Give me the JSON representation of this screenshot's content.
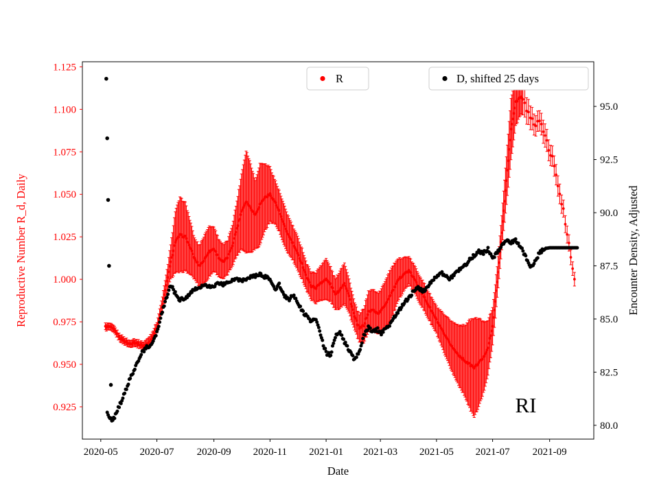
{
  "figure": {
    "background": "#ffffff"
  },
  "chart_data": {
    "type": "scatter",
    "title": "",
    "xlabel": "Date",
    "ylabel_left": "Reproductive Number R_d, Daily",
    "ylabel_right": "Encounter Density, Adjusted",
    "annotation": "RI",
    "colors": {
      "r": "#ff0000",
      "d": "#000000",
      "legend_border": "#cccccc"
    },
    "legend": [
      {
        "label": "R",
        "color": "#ff0000"
      },
      {
        "label": "D, shifted 25 days",
        "color": "#000000"
      }
    ],
    "xlim": [
      "2020-04-11",
      "2021-10-19"
    ],
    "ylim_left": [
      0.906,
      1.128
    ],
    "ylim_right": [
      79.35,
      97.1
    ],
    "x_ticks": [
      [
        "2020-05-01",
        "2020-05"
      ],
      [
        "2020-07-01",
        "2020-07"
      ],
      [
        "2020-09-01",
        "2020-09"
      ],
      [
        "2020-11-01",
        "2020-11"
      ],
      [
        "2021-01-01",
        "2021-01"
      ],
      [
        "2021-03-01",
        "2021-03"
      ],
      [
        "2021-05-01",
        "2021-05"
      ],
      [
        "2021-07-01",
        "2021-07"
      ],
      [
        "2021-09-01",
        "2021-09"
      ]
    ],
    "y_ticks_left": [
      [
        0.925,
        "0.925"
      ],
      [
        0.95,
        "0.950"
      ],
      [
        0.975,
        "0.975"
      ],
      [
        1.0,
        "1.000"
      ],
      [
        1.025,
        "1.025"
      ],
      [
        1.05,
        "1.050"
      ],
      [
        1.075,
        "1.075"
      ],
      [
        1.1,
        "1.100"
      ],
      [
        1.125,
        "1.125"
      ]
    ],
    "y_ticks_right": [
      [
        80.0,
        "80.0"
      ],
      [
        82.5,
        "82.5"
      ],
      [
        85.0,
        "85.0"
      ],
      [
        87.5,
        "87.5"
      ],
      [
        90.0,
        "90.0"
      ],
      [
        92.5,
        "92.5"
      ],
      [
        95.0,
        "95.0"
      ]
    ],
    "series": [
      {
        "name": "R",
        "axis": "left",
        "marker": "dot-with-errorbar",
        "color": "#ff0000",
        "note": "daily values; control points every ~5 days as [date, R, err]",
        "points": [
          [
            "2020-05-06",
            0.972,
            0.002
          ],
          [
            "2020-05-11",
            0.972,
            0.002
          ],
          [
            "2020-05-16",
            0.97,
            0.002
          ],
          [
            "2020-05-21",
            0.966,
            0.002
          ],
          [
            "2020-05-26",
            0.964,
            0.002
          ],
          [
            "2020-06-01",
            0.962,
            0.002
          ],
          [
            "2020-06-06",
            0.963,
            0.002
          ],
          [
            "2020-06-11",
            0.962,
            0.002
          ],
          [
            "2020-06-16",
            0.961,
            0.002
          ],
          [
            "2020-06-21",
            0.962,
            0.003
          ],
          [
            "2020-06-26",
            0.966,
            0.003
          ],
          [
            "2020-07-01",
            0.972,
            0.003
          ],
          [
            "2020-07-06",
            0.983,
            0.004
          ],
          [
            "2020-07-11",
            0.996,
            0.006
          ],
          [
            "2020-07-16",
            1.01,
            0.01
          ],
          [
            "2020-07-21",
            1.022,
            0.018
          ],
          [
            "2020-07-26",
            1.026,
            0.022
          ],
          [
            "2020-08-01",
            1.025,
            0.02
          ],
          [
            "2020-08-06",
            1.019,
            0.016
          ],
          [
            "2020-08-11",
            1.012,
            0.012
          ],
          [
            "2020-08-16",
            1.008,
            0.012
          ],
          [
            "2020-08-21",
            1.011,
            0.014
          ],
          [
            "2020-08-26",
            1.016,
            0.015
          ],
          [
            "2020-09-01",
            1.018,
            0.013
          ],
          [
            "2020-09-06",
            1.013,
            0.011
          ],
          [
            "2020-09-11",
            1.01,
            0.01
          ],
          [
            "2020-09-16",
            1.013,
            0.01
          ],
          [
            "2020-09-21",
            1.02,
            0.012
          ],
          [
            "2020-09-26",
            1.03,
            0.016
          ],
          [
            "2020-10-01",
            1.04,
            0.022
          ],
          [
            "2020-10-06",
            1.046,
            0.03
          ],
          [
            "2020-10-11",
            1.042,
            0.026
          ],
          [
            "2020-10-16",
            1.038,
            0.02
          ],
          [
            "2020-10-21",
            1.044,
            0.024
          ],
          [
            "2020-10-26",
            1.048,
            0.02
          ],
          [
            "2020-11-01",
            1.05,
            0.016
          ],
          [
            "2020-11-06",
            1.046,
            0.013
          ],
          [
            "2020-11-11",
            1.04,
            0.012
          ],
          [
            "2020-11-16",
            1.032,
            0.012
          ],
          [
            "2020-11-21",
            1.026,
            0.011
          ],
          [
            "2020-11-26",
            1.021,
            0.01
          ],
          [
            "2020-12-01",
            1.015,
            0.01
          ],
          [
            "2020-12-06",
            1.009,
            0.009
          ],
          [
            "2020-12-11",
            1.001,
            0.008
          ],
          [
            "2020-12-16",
            0.996,
            0.008
          ],
          [
            "2020-12-21",
            0.995,
            0.009
          ],
          [
            "2020-12-26",
            0.998,
            0.01
          ],
          [
            "2021-01-01",
            1.0,
            0.012
          ],
          [
            "2021-01-06",
            0.997,
            0.01
          ],
          [
            "2021-01-11",
            0.991,
            0.009
          ],
          [
            "2021-01-16",
            0.994,
            0.011
          ],
          [
            "2021-01-21",
            0.998,
            0.012
          ],
          [
            "2021-01-26",
            0.99,
            0.01
          ],
          [
            "2021-02-01",
            0.978,
            0.008
          ],
          [
            "2021-02-06",
            0.971,
            0.008
          ],
          [
            "2021-02-11",
            0.973,
            0.01
          ],
          [
            "2021-02-16",
            0.981,
            0.012
          ],
          [
            "2021-02-21",
            0.982,
            0.012
          ],
          [
            "2021-02-26",
            0.98,
            0.012
          ],
          [
            "2021-03-01",
            0.981,
            0.012
          ],
          [
            "2021-03-06",
            0.985,
            0.014
          ],
          [
            "2021-03-11",
            0.99,
            0.015
          ],
          [
            "2021-03-16",
            0.995,
            0.014
          ],
          [
            "2021-03-21",
            1.0,
            0.012
          ],
          [
            "2021-03-26",
            1.003,
            0.01
          ],
          [
            "2021-04-01",
            1.005,
            0.008
          ],
          [
            "2021-04-06",
            1.001,
            0.008
          ],
          [
            "2021-04-11",
            0.996,
            0.008
          ],
          [
            "2021-04-16",
            0.991,
            0.008
          ],
          [
            "2021-04-21",
            0.986,
            0.008
          ],
          [
            "2021-04-26",
            0.981,
            0.008
          ],
          [
            "2021-05-01",
            0.976,
            0.008
          ],
          [
            "2021-05-06",
            0.971,
            0.01
          ],
          [
            "2021-05-11",
            0.966,
            0.012
          ],
          [
            "2021-05-16",
            0.962,
            0.014
          ],
          [
            "2021-05-21",
            0.958,
            0.016
          ],
          [
            "2021-05-26",
            0.955,
            0.018
          ],
          [
            "2021-06-01",
            0.952,
            0.021
          ],
          [
            "2021-06-06",
            0.95,
            0.026
          ],
          [
            "2021-06-11",
            0.948,
            0.029
          ],
          [
            "2021-06-16",
            0.951,
            0.026
          ],
          [
            "2021-06-21",
            0.954,
            0.021
          ],
          [
            "2021-06-26",
            0.96,
            0.016
          ],
          [
            "2021-07-01",
            0.972,
            0.011
          ],
          [
            "2021-07-06",
            0.998,
            0.009
          ],
          [
            "2021-07-11",
            1.028,
            0.01
          ],
          [
            "2021-07-16",
            1.058,
            0.014
          ],
          [
            "2021-07-21",
            1.088,
            0.018
          ],
          [
            "2021-07-26",
            1.104,
            0.014
          ],
          [
            "2021-08-01",
            1.108,
            0.01
          ],
          [
            "2021-08-06",
            1.101,
            0.008
          ],
          [
            "2021-08-11",
            1.096,
            0.007
          ],
          [
            "2021-08-16",
            1.091,
            0.006
          ],
          [
            "2021-08-21",
            1.093,
            0.006
          ],
          [
            "2021-08-26",
            1.085,
            0.007
          ],
          [
            "2021-09-01",
            1.076,
            0.006
          ],
          [
            "2021-09-06",
            1.068,
            0.006
          ],
          [
            "2021-09-11",
            1.052,
            0.006
          ],
          [
            "2021-09-16",
            1.04,
            0.005
          ],
          [
            "2021-09-21",
            1.024,
            0.005
          ],
          [
            "2021-09-26",
            1.008,
            0.004
          ],
          [
            "2021-09-29",
            0.998,
            0.004
          ]
        ]
      },
      {
        "name": "D, shifted 25 days",
        "axis": "right",
        "marker": "dot",
        "color": "#000000",
        "note": "daily values; control points every ~5 days as [date, D]",
        "outliers": [
          [
            "2020-05-07",
            96.3
          ],
          [
            "2020-05-08",
            93.5
          ],
          [
            "2020-05-09",
            90.6
          ],
          [
            "2020-05-10",
            87.5
          ],
          [
            "2020-05-12",
            81.9
          ]
        ],
        "points": [
          [
            "2020-05-08",
            80.6
          ],
          [
            "2020-05-11",
            80.3
          ],
          [
            "2020-05-14",
            80.2
          ],
          [
            "2020-05-17",
            80.5
          ],
          [
            "2020-05-21",
            80.9
          ],
          [
            "2020-05-26",
            81.4
          ],
          [
            "2020-06-01",
            82.1
          ],
          [
            "2020-06-06",
            82.6
          ],
          [
            "2020-06-11",
            83.1
          ],
          [
            "2020-06-16",
            83.5
          ],
          [
            "2020-06-21",
            83.7
          ],
          [
            "2020-06-26",
            83.8
          ],
          [
            "2020-07-01",
            84.4
          ],
          [
            "2020-07-06",
            85.2
          ],
          [
            "2020-07-11",
            85.9
          ],
          [
            "2020-07-16",
            86.6
          ],
          [
            "2020-07-21",
            86.2
          ],
          [
            "2020-07-26",
            85.9
          ],
          [
            "2020-08-01",
            86.0
          ],
          [
            "2020-08-06",
            86.2
          ],
          [
            "2020-08-11",
            86.4
          ],
          [
            "2020-08-16",
            86.5
          ],
          [
            "2020-08-21",
            86.6
          ],
          [
            "2020-08-26",
            86.5
          ],
          [
            "2020-09-01",
            86.5
          ],
          [
            "2020-09-06",
            86.7
          ],
          [
            "2020-09-11",
            86.6
          ],
          [
            "2020-09-16",
            86.7
          ],
          [
            "2020-09-21",
            86.8
          ],
          [
            "2020-09-26",
            86.9
          ],
          [
            "2020-10-01",
            86.8
          ],
          [
            "2020-10-06",
            86.9
          ],
          [
            "2020-10-11",
            87.0
          ],
          [
            "2020-10-16",
            87.0
          ],
          [
            "2020-10-21",
            87.1
          ],
          [
            "2020-10-26",
            87.0
          ],
          [
            "2020-11-01",
            86.9
          ],
          [
            "2020-11-06",
            86.4
          ],
          [
            "2020-11-11",
            86.6
          ],
          [
            "2020-11-16",
            86.1
          ],
          [
            "2020-11-21",
            85.9
          ],
          [
            "2020-11-26",
            86.1
          ],
          [
            "2020-12-01",
            85.8
          ],
          [
            "2020-12-06",
            85.4
          ],
          [
            "2020-12-11",
            85.1
          ],
          [
            "2020-12-16",
            84.9
          ],
          [
            "2020-12-21",
            85.0
          ],
          [
            "2020-12-26",
            84.2
          ],
          [
            "2021-01-01",
            83.4
          ],
          [
            "2021-01-06",
            83.3
          ],
          [
            "2021-01-11",
            84.2
          ],
          [
            "2021-01-16",
            84.4
          ],
          [
            "2021-01-21",
            83.9
          ],
          [
            "2021-01-26",
            83.5
          ],
          [
            "2021-02-01",
            83.1
          ],
          [
            "2021-02-06",
            83.4
          ],
          [
            "2021-02-11",
            84.2
          ],
          [
            "2021-02-16",
            84.6
          ],
          [
            "2021-02-21",
            84.4
          ],
          [
            "2021-02-26",
            84.5
          ],
          [
            "2021-03-01",
            84.3
          ],
          [
            "2021-03-06",
            84.5
          ],
          [
            "2021-03-11",
            84.7
          ],
          [
            "2021-03-16",
            85.1
          ],
          [
            "2021-03-21",
            85.4
          ],
          [
            "2021-03-26",
            85.7
          ],
          [
            "2021-04-01",
            86.0
          ],
          [
            "2021-04-06",
            86.3
          ],
          [
            "2021-04-11",
            86.5
          ],
          [
            "2021-04-16",
            86.3
          ],
          [
            "2021-04-21",
            86.5
          ],
          [
            "2021-04-26",
            86.8
          ],
          [
            "2021-05-01",
            87.0
          ],
          [
            "2021-05-06",
            87.2
          ],
          [
            "2021-05-11",
            87.0
          ],
          [
            "2021-05-16",
            86.9
          ],
          [
            "2021-05-21",
            87.1
          ],
          [
            "2021-05-26",
            87.3
          ],
          [
            "2021-06-01",
            87.5
          ],
          [
            "2021-06-06",
            87.8
          ],
          [
            "2021-06-11",
            88.0
          ],
          [
            "2021-06-16",
            88.2
          ],
          [
            "2021-06-21",
            88.1
          ],
          [
            "2021-06-26",
            88.3
          ],
          [
            "2021-07-01",
            87.9
          ],
          [
            "2021-07-06",
            88.1
          ],
          [
            "2021-07-11",
            88.5
          ],
          [
            "2021-07-16",
            88.7
          ],
          [
            "2021-07-21",
            88.6
          ],
          [
            "2021-07-26",
            88.7
          ],
          [
            "2021-08-01",
            88.4
          ],
          [
            "2021-08-06",
            87.9
          ],
          [
            "2021-08-11",
            87.4
          ],
          [
            "2021-08-16",
            87.7
          ],
          [
            "2021-08-21",
            88.1
          ],
          [
            "2021-08-26",
            88.3
          ],
          [
            "2021-09-01",
            88.35
          ],
          [
            "2021-09-06",
            88.35
          ],
          [
            "2021-09-11",
            88.35
          ],
          [
            "2021-09-16",
            88.35
          ],
          [
            "2021-09-21",
            88.35
          ],
          [
            "2021-09-26",
            88.35
          ],
          [
            "2021-10-01",
            88.35
          ]
        ]
      }
    ]
  }
}
